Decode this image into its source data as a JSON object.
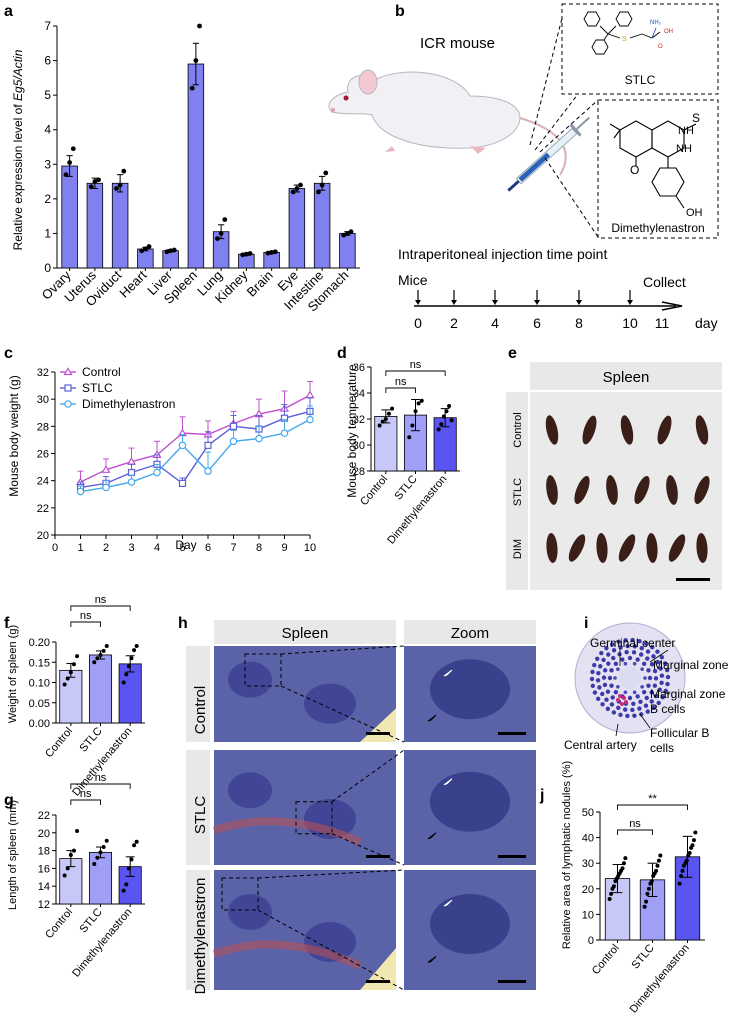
{
  "colors": {
    "bar_purple": "#8080f0",
    "control": "#c8c8f8",
    "stlc": "#9f9ff5",
    "dim": "#5a55f0",
    "line_control": "#c050d0",
    "line_stlc": "#5a60d8",
    "line_dim": "#44a8ec",
    "header_bg": "#e8e8e8",
    "tissue_bg": "#5a62a8",
    "spleen_dark": "#3a1e18"
  },
  "panel_labels": {
    "a": "a",
    "b": "b",
    "c": "c",
    "d": "d",
    "e": "e",
    "f": "f",
    "g": "g",
    "h": "h",
    "i": "i",
    "j": "j"
  },
  "panel_a": {
    "chart_data": {
      "type": "bar",
      "ylabel_prefix": "Relative expression level of ",
      "ylabel_gene": "Eg5/Actin",
      "categories": [
        "Ovary",
        "Uterus",
        "Oviduct",
        "Heart",
        "Liver",
        "Spleen",
        "Lung",
        "Kidney",
        "Brain",
        "Eye",
        "Intestine",
        "Stomach"
      ],
      "values": [
        2.95,
        2.45,
        2.45,
        0.55,
        0.5,
        5.9,
        1.05,
        0.4,
        0.45,
        2.3,
        2.45,
        1.0
      ],
      "errors": [
        0.3,
        0.15,
        0.25,
        0.05,
        0.03,
        0.6,
        0.2,
        0.03,
        0.03,
        0.1,
        0.2,
        0.05
      ],
      "points": [
        [
          2.7,
          3.05,
          3.45
        ],
        [
          2.35,
          2.5,
          2.55
        ],
        [
          2.3,
          2.4,
          2.8
        ],
        [
          0.5,
          0.55,
          0.62
        ],
        [
          0.47,
          0.5,
          0.52
        ],
        [
          5.2,
          6.0,
          7.0
        ],
        [
          0.85,
          1.0,
          1.4
        ],
        [
          0.38,
          0.4,
          0.42
        ],
        [
          0.43,
          0.45,
          0.47
        ],
        [
          2.2,
          2.3,
          2.4
        ],
        [
          2.2,
          2.4,
          2.75
        ],
        [
          0.95,
          1.0,
          1.05
        ]
      ],
      "yticks": [
        "0",
        "1",
        "2",
        "3",
        "4",
        "5",
        "6",
        "7"
      ],
      "ylim": [
        0,
        7
      ]
    }
  },
  "panel_b": {
    "mouse_label": "ICR mouse",
    "stlc_name": "STLC",
    "dim_name": "Dimethylenastron",
    "timeline_title": "Intraperitoneal injection time point",
    "mice_label": "Mice",
    "collect_label": "Collect",
    "days": [
      "0",
      "2",
      "4",
      "6",
      "8",
      "10",
      "11"
    ],
    "day_unit": "day",
    "chem_nh2": "NH₂",
    "chem_oh_acid": "OH",
    "chem_o_acid": "O",
    "chem_s_stlc": "S",
    "chem_nh": "NH",
    "chem_s": "S",
    "chem_o": "O",
    "chem_oh": "OH"
  },
  "panel_c": {
    "chart_data": {
      "type": "line",
      "xlabel": "Day",
      "ylabel": "Mouse body weight (g)",
      "x": [
        1,
        2,
        3,
        4,
        5,
        6,
        7,
        8,
        9,
        10
      ],
      "xticks": [
        "0",
        "1",
        "2",
        "3",
        "4",
        "5",
        "6",
        "7",
        "8",
        "9",
        "10"
      ],
      "yticks": [
        "20",
        "22",
        "24",
        "26",
        "28",
        "30",
        "32"
      ],
      "ylim": [
        20,
        32
      ],
      "xlim": [
        0,
        10
      ],
      "series": [
        {
          "name": "Control",
          "values": [
            23.9,
            24.8,
            25.4,
            25.9,
            27.5,
            27.4,
            28.2,
            28.9,
            29.3,
            30.3
          ],
          "errors": [
            0.8,
            0.8,
            1.0,
            1.0,
            1.2,
            1.0,
            0.9,
            1.1,
            1.3,
            1.0
          ]
        },
        {
          "name": "STLC",
          "values": [
            23.5,
            23.8,
            24.6,
            25.2,
            23.8,
            26.6,
            28.0,
            27.8,
            28.6,
            29.1
          ],
          "errors": [
            0.4,
            0.5,
            0.6,
            0.7,
            0.4,
            1.0,
            0.8,
            1.0,
            1.0,
            1.0
          ]
        },
        {
          "name": "Dimethylenastron",
          "values": [
            23.2,
            23.5,
            23.9,
            24.6,
            26.6,
            24.7,
            26.9,
            27.1,
            27.5,
            28.5
          ],
          "errors": [
            0.4,
            0.5,
            0.5,
            0.6,
            0.8,
            1.4,
            0.8,
            0.9,
            1.0,
            1.0
          ]
        }
      ]
    }
  },
  "panel_d": {
    "chart_data": {
      "type": "bar",
      "ylabel": "Mouse body temperature",
      "categories": [
        "Control",
        "STLC",
        "Dimethylenastron"
      ],
      "values": [
        32.2,
        32.3,
        32.1
      ],
      "errors": [
        0.5,
        1.2,
        0.7
      ],
      "points": [
        [
          31.5,
          31.8,
          32.0,
          32.4,
          32.8
        ],
        [
          30.6,
          31.5,
          32.6,
          33.2,
          33.4
        ],
        [
          31.2,
          31.6,
          32.2,
          32.6,
          33.0,
          31.9
        ]
      ],
      "yticks": [
        "28",
        "30",
        "32",
        "34",
        "36"
      ],
      "ylim": [
        28,
        36
      ],
      "sig": [
        "ns",
        "ns"
      ]
    }
  },
  "panel_e": {
    "header": "Spleen",
    "rows": [
      "Control",
      "STLC",
      "DIM"
    ],
    "counts": [
      5,
      6,
      7
    ]
  },
  "panel_f": {
    "chart_data": {
      "type": "bar",
      "ylabel": "Weight of spleen (g)",
      "categories": [
        "Control",
        "STLC",
        "Dimethylenastron"
      ],
      "values": [
        0.13,
        0.168,
        0.146
      ],
      "errors": [
        0.017,
        0.01,
        0.02
      ],
      "points": [
        [
          0.095,
          0.11,
          0.125,
          0.145,
          0.165
        ],
        [
          0.15,
          0.16,
          0.168,
          0.178,
          0.19
        ],
        [
          0.1,
          0.12,
          0.14,
          0.16,
          0.18,
          0.19
        ]
      ],
      "yticks": [
        "0.00",
        "0.05",
        "0.10",
        "0.15",
        "0.20"
      ],
      "ylim": [
        0,
        0.2
      ],
      "sig": [
        "ns",
        "ns"
      ]
    }
  },
  "panel_g": {
    "chart_data": {
      "type": "bar",
      "ylabel": "Length of spleen (mm)",
      "categories": [
        "Control",
        "STLC",
        "Dimethylenastron"
      ],
      "values": [
        17.1,
        17.8,
        16.2
      ],
      "errors": [
        0.9,
        0.6,
        1.1
      ],
      "points": [
        [
          15.2,
          16.0,
          17.5,
          18.0,
          20.2
        ],
        [
          16.5,
          17.2,
          17.8,
          18.4,
          19.1
        ],
        [
          13.5,
          14.2,
          16.0,
          17.0,
          18.6,
          19.0
        ]
      ],
      "yticks": [
        "12",
        "14",
        "16",
        "18",
        "20",
        "22"
      ],
      "ylim": [
        12,
        22
      ],
      "sig": [
        "ns",
        "ns"
      ]
    }
  },
  "panel_h": {
    "header_spleen": "Spleen",
    "header_zoom": "Zoom",
    "rows": [
      "Control",
      "STLC",
      "Dimethylenastron"
    ]
  },
  "panel_i": {
    "germinal_center": "Germinal center",
    "marginal_zone": "Marginal zone",
    "marginal_b_1": "Marginal zone",
    "marginal_b_2": "B cells",
    "follicular_1": "Follicular B",
    "follicular_2": "cells",
    "central_artery": "Central artery"
  },
  "panel_j": {
    "chart_data": {
      "type": "bar",
      "ylabel": "Relative area of lymphatic nodules (%)",
      "categories": [
        "Control",
        "STLC",
        "Dimethylenastron"
      ],
      "values": [
        24,
        23.5,
        32.5
      ],
      "errors": [
        5.5,
        6.5,
        8
      ],
      "points": [
        [
          16,
          18,
          20,
          21,
          23,
          24,
          25,
          26,
          27,
          28,
          30,
          32
        ],
        [
          13,
          15,
          18,
          20,
          22,
          23,
          25,
          26,
          27,
          29,
          31,
          33
        ],
        [
          22,
          25,
          27,
          29,
          30,
          31,
          33,
          34,
          36,
          37,
          39,
          42
        ]
      ],
      "yticks": [
        "0",
        "10",
        "20",
        "30",
        "40",
        "50"
      ],
      "ylim": [
        0,
        50
      ],
      "sig": [
        "ns",
        "**"
      ]
    }
  }
}
